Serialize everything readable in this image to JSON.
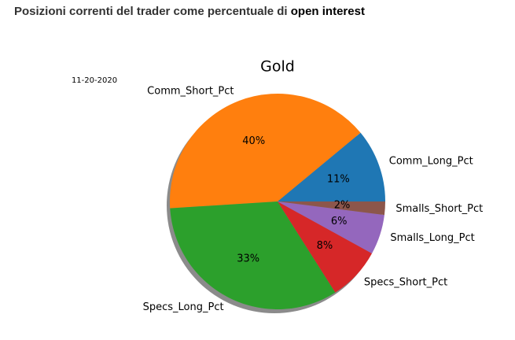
{
  "header": {
    "title": "Posizioni correnti del trader come percentuale di",
    "title_emphasis": "open interest"
  },
  "chart_data": {
    "type": "pie",
    "title": "Gold",
    "subtitle": "11-20-2020",
    "categories": [
      "Comm_Long_Pct",
      "Comm_Short_Pct",
      "Specs_Long_Pct",
      "Specs_Short_Pct",
      "Smalls_Long_Pct",
      "Smalls_Short_Pct"
    ],
    "values": [
      11,
      40,
      33,
      8,
      6,
      2
    ],
    "value_labels": [
      "11%",
      "40%",
      "33%",
      "8%",
      "6%",
      "2%"
    ],
    "colors": [
      "#1f77b4",
      "#ff7f0e",
      "#2ca02c",
      "#d62728",
      "#9467bd",
      "#8c564b"
    ],
    "shadow": true
  }
}
